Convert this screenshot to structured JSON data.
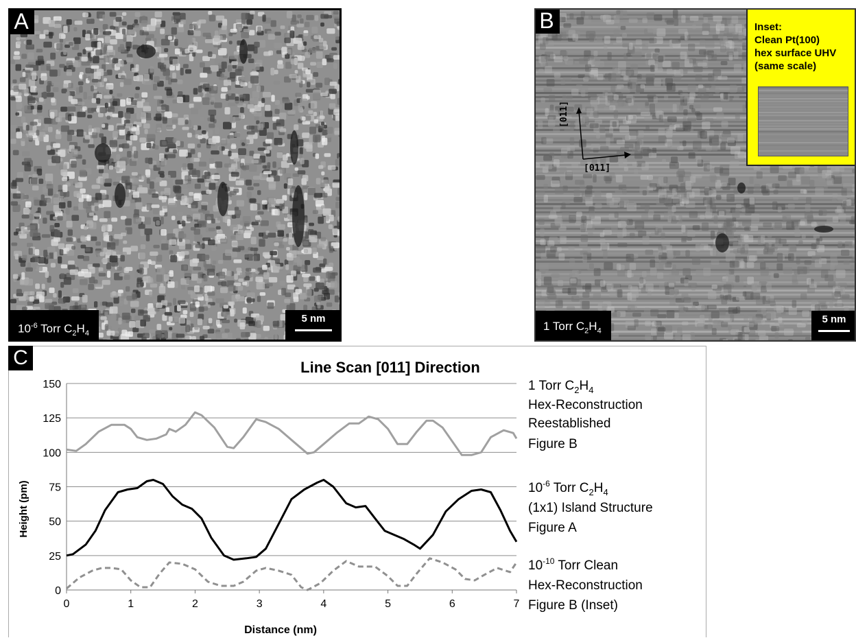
{
  "panel_a": {
    "letter": "A",
    "cond_pre": "10",
    "cond_exp": "-6",
    "cond_mid": " Torr C",
    "cond_sub1": "2",
    "cond_h": "H",
    "cond_sub2": "4",
    "scale_label": "5 nm"
  },
  "panel_b": {
    "letter": "B",
    "cond_pre": "1 Torr C",
    "cond_sub1": "2",
    "cond_h": "H",
    "cond_sub2": "4",
    "scale_label": "5 nm",
    "inset_text": "Inset:\nClean Pt(100)\nhex surface UHV\n(same scale)",
    "dir_vertical": "[011]",
    "dir_horizontal": "[011̄]"
  },
  "panel_c": {
    "letter": "C"
  },
  "chart_data": {
    "type": "line",
    "title": "Line Scan [011] Direction",
    "xlabel": "Distance (nm)",
    "ylabel": "Height (pm)",
    "xlim": [
      0,
      7
    ],
    "ylim": [
      0,
      150
    ],
    "xticks": [
      "0",
      "1",
      "2",
      "3",
      "4",
      "5",
      "6",
      "7"
    ],
    "yticks": [
      "0",
      "25",
      "50",
      "75",
      "100",
      "125",
      "150"
    ],
    "grid": true,
    "series": [
      {
        "name": "1 Torr C2H4 Hex-Reconstruction Reestablished Figure B",
        "color": "#a0a0a0",
        "style": "solid",
        "x": [
          0,
          0.15,
          0.3,
          0.5,
          0.7,
          0.9,
          1.0,
          1.1,
          1.25,
          1.4,
          1.55,
          1.6,
          1.7,
          1.85,
          2.0,
          2.1,
          2.3,
          2.5,
          2.6,
          2.75,
          2.95,
          3.1,
          3.3,
          3.55,
          3.75,
          3.85,
          4.0,
          4.2,
          4.4,
          4.55,
          4.7,
          4.85,
          5.0,
          5.15,
          5.3,
          5.45,
          5.6,
          5.7,
          5.85,
          6.0,
          6.15,
          6.3,
          6.45,
          6.6,
          6.8,
          6.95,
          7.0
        ],
        "values": [
          102,
          101,
          106,
          115,
          120,
          120,
          117,
          111,
          109,
          110,
          113,
          117,
          115,
          120,
          129,
          127,
          118,
          104,
          103,
          111,
          124,
          122,
          117,
          107,
          99,
          100,
          106,
          114,
          121,
          121,
          126,
          124,
          117,
          106,
          106,
          115,
          123,
          123,
          118,
          108,
          98,
          98,
          100,
          111,
          116,
          114,
          110
        ],
        "legend_l1_a": "1 Torr C",
        "legend_l1_sub": "2",
        "legend_l1_b": "H",
        "legend_l1_sub2": "4",
        "legend_l2": "Hex-Reconstruction",
        "legend_l3": "Reestablished",
        "legend_l4": "Figure B"
      },
      {
        "name": "10-6 Torr C2H4 (1x1) Island Structure Figure A",
        "color": "#000000",
        "style": "solid",
        "x": [
          0,
          0.1,
          0.3,
          0.45,
          0.6,
          0.8,
          0.95,
          1.1,
          1.25,
          1.35,
          1.5,
          1.65,
          1.8,
          1.95,
          2.1,
          2.25,
          2.45,
          2.6,
          2.8,
          2.95,
          3.1,
          3.3,
          3.5,
          3.7,
          3.9,
          4.0,
          4.15,
          4.35,
          4.5,
          4.65,
          4.8,
          4.95,
          5.1,
          5.25,
          5.4,
          5.5,
          5.7,
          5.9,
          6.1,
          6.3,
          6.45,
          6.6,
          6.75,
          6.9,
          7.0
        ],
        "values": [
          25,
          26,
          33,
          43,
          58,
          71,
          73,
          74,
          79,
          80,
          77,
          68,
          62,
          59,
          52,
          38,
          25,
          22,
          23,
          24,
          30,
          48,
          66,
          73,
          78,
          80,
          75,
          63,
          60,
          61,
          52,
          43,
          40,
          37,
          33,
          30,
          40,
          57,
          66,
          72,
          73,
          71,
          58,
          43,
          35
        ],
        "legend_l1_a": "10",
        "legend_l1_exp": "-6",
        "legend_l1_b": " Torr C",
        "legend_l1_sub": "2",
        "legend_l1_c": "H",
        "legend_l1_sub2": "4",
        "legend_l2": "(1x1) Island Structure",
        "legend_l3": "Figure A"
      },
      {
        "name": "10-10 Torr Clean Hex-Reconstruction Figure B (Inset)",
        "color": "#909090",
        "style": "dashed",
        "x": [
          0,
          0.2,
          0.4,
          0.55,
          0.7,
          0.85,
          1.0,
          1.15,
          1.3,
          1.45,
          1.6,
          1.8,
          2.0,
          2.2,
          2.4,
          2.6,
          2.75,
          2.95,
          3.1,
          3.3,
          3.5,
          3.65,
          3.75,
          3.95,
          4.15,
          4.35,
          4.55,
          4.8,
          5.0,
          5.15,
          5.3,
          5.45,
          5.65,
          5.85,
          6.05,
          6.2,
          6.35,
          6.5,
          6.7,
          6.9,
          7.0
        ],
        "values": [
          1,
          9,
          14,
          16,
          16,
          15,
          7,
          2,
          2,
          12,
          20,
          19,
          15,
          6,
          3,
          3,
          6,
          14,
          16,
          14,
          11,
          2,
          0,
          5,
          14,
          21,
          17,
          17,
          10,
          3,
          3,
          12,
          23,
          20,
          15,
          8,
          7,
          11,
          16,
          13,
          20
        ],
        "legend_l1_a": "10",
        "legend_l1_exp": "-10",
        "legend_l1_b": " Torr Clean",
        "legend_l2": "Hex-Reconstruction",
        "legend_l3": "Figure B (Inset)"
      }
    ]
  }
}
